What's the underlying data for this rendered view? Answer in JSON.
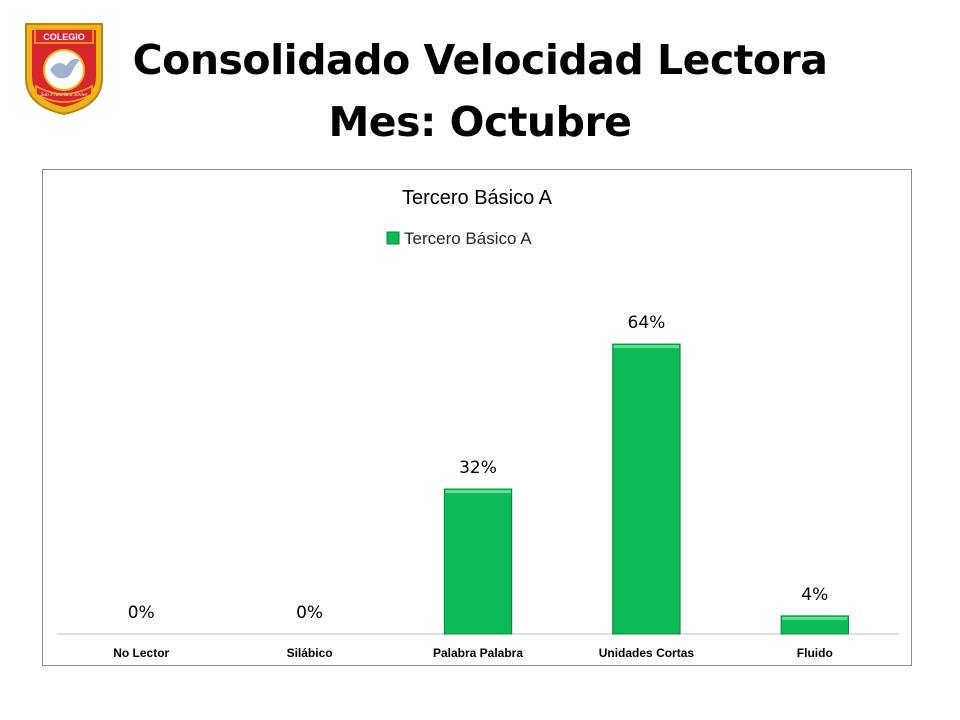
{
  "header": {
    "title": "Consolidado Velocidad Lectora",
    "subtitle": "Mes: Octubre",
    "logo": {
      "top_text": "COLEGIO",
      "ribbon_text": "San Francisco Javier",
      "icon": "dove-crest-icon"
    }
  },
  "colors": {
    "bar": "#0cbb56",
    "bar_dark": "#07863c",
    "logo_red": "#d8262e",
    "logo_gold": "#f2b21a"
  },
  "chart_data": {
    "type": "bar",
    "title": "Tercero Básico A",
    "categories": [
      "No Lector",
      "Silábico",
      "Palabra Palabra",
      "Unidades Cortas",
      "Fluido"
    ],
    "series": [
      {
        "name": "Tercero Básico A",
        "values": [
          0,
          0,
          32,
          64,
          4
        ],
        "labels": [
          "0%",
          "0%",
          "32%",
          "64%",
          "4%"
        ]
      }
    ],
    "ylim": [
      0,
      100
    ],
    "legend": "top",
    "grid": false
  }
}
